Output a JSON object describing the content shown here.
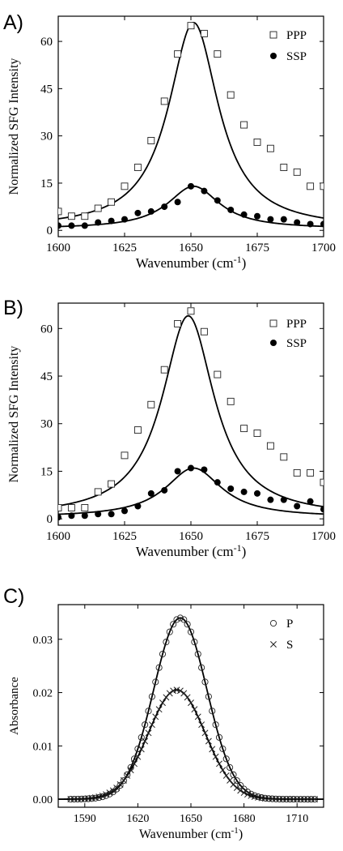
{
  "chart_data": [
    {
      "panel_label": "A)",
      "type": "scatter",
      "xlabel": "Wavenumber (cm",
      "xlabel_sup": "-1",
      "xlabel_tail": ")",
      "ylabel": "Normalized SFG Intensity",
      "xlim": [
        1600,
        1700
      ],
      "ylim": [
        -2,
        68
      ],
      "xticks": [
        1600,
        1625,
        1650,
        1675,
        1700
      ],
      "yticks": [
        0,
        15,
        30,
        45,
        60
      ],
      "legend_position": "top-right",
      "series": [
        {
          "name": "PPP",
          "marker": "open-square",
          "x": [
            1600,
            1605,
            1610,
            1615,
            1620,
            1625,
            1630,
            1635,
            1640,
            1645,
            1650,
            1655,
            1660,
            1665,
            1670,
            1675,
            1680,
            1685,
            1690,
            1695,
            1700
          ],
          "y": [
            6,
            4.5,
            4.5,
            7,
            9,
            14,
            20,
            28.5,
            41,
            56,
            65,
            62.5,
            56,
            43,
            33.5,
            28,
            26,
            20,
            18.5,
            14,
            14
          ],
          "fit": {
            "peak": 65.5,
            "center": 1651,
            "gamma": 11.5,
            "base": 0.5
          }
        },
        {
          "name": "SSP",
          "marker": "filled-circle",
          "x": [
            1600,
            1605,
            1610,
            1615,
            1620,
            1625,
            1630,
            1635,
            1640,
            1645,
            1650,
            1655,
            1660,
            1665,
            1670,
            1675,
            1680,
            1685,
            1690,
            1695,
            1700
          ],
          "y": [
            1.5,
            1.5,
            1.5,
            2.5,
            3,
            3.5,
            5.5,
            6,
            7.5,
            9,
            14,
            12.5,
            9.5,
            6.5,
            5,
            4.5,
            3.5,
            3.5,
            2.5,
            2,
            2
          ],
          "fit": {
            "peak": 13.5,
            "center": 1651,
            "gamma": 12,
            "base": 0.5
          }
        }
      ]
    },
    {
      "panel_label": "B)",
      "type": "scatter",
      "xlabel": "Wavenumber (cm",
      "xlabel_sup": "-1",
      "xlabel_tail": ")",
      "ylabel": "Normalized SFG Intensity",
      "xlim": [
        1600,
        1700
      ],
      "ylim": [
        -2,
        68
      ],
      "xticks": [
        1600,
        1625,
        1650,
        1675,
        1700
      ],
      "yticks": [
        0,
        15,
        30,
        45,
        60
      ],
      "legend_position": "top-right",
      "series": [
        {
          "name": "PPP",
          "marker": "open-square",
          "x": [
            1600,
            1605,
            1610,
            1615,
            1620,
            1625,
            1630,
            1635,
            1640,
            1645,
            1650,
            1655,
            1660,
            1665,
            1670,
            1675,
            1680,
            1685,
            1690,
            1695,
            1700
          ],
          "y": [
            3.5,
            3.5,
            3.5,
            8.5,
            11,
            20,
            28,
            36,
            47,
            61.5,
            65.5,
            59,
            45.5,
            37,
            28.5,
            27,
            23,
            19.5,
            14.5,
            14.5,
            11.5
          ],
          "fit": {
            "peak": 63.5,
            "center": 1649,
            "gamma": 12,
            "base": 0.5
          }
        },
        {
          "name": "SSP",
          "marker": "filled-circle",
          "x": [
            1600,
            1605,
            1610,
            1615,
            1620,
            1625,
            1630,
            1635,
            1640,
            1645,
            1650,
            1655,
            1660,
            1665,
            1670,
            1675,
            1680,
            1685,
            1690,
            1695,
            1700
          ],
          "y": [
            0.5,
            1,
            1,
            1.5,
            1.5,
            2.5,
            4,
            8,
            9,
            15,
            16,
            15.5,
            11.5,
            9.5,
            8.5,
            8,
            6,
            6,
            4,
            5.5,
            3
          ],
          "fit": {
            "peak": 15.5,
            "center": 1651,
            "gamma": 13,
            "base": 0.5
          }
        }
      ]
    },
    {
      "panel_label": "C)",
      "type": "scatter",
      "xlabel": "Wavenumber (cm",
      "xlabel_sup": "-1",
      "xlabel_tail": ")",
      "ylabel": "Absorbance",
      "xlim": [
        1575,
        1725
      ],
      "ylim": [
        -0.0015,
        0.0365
      ],
      "xticks": [
        1590,
        1620,
        1650,
        1680,
        1710
      ],
      "yticks": [
        0.0,
        0.01,
        0.02,
        0.03
      ],
      "ytick_labels": [
        "0.00",
        "0.01",
        "0.02",
        "0.03"
      ],
      "legend_position": "top-right",
      "series": [
        {
          "name": "P",
          "marker": "open-circle",
          "gauss": {
            "peak": 0.034,
            "center": 1644,
            "sigma": 15
          },
          "x_range": [
            1582,
            1720
          ],
          "step": 2
        },
        {
          "name": "S",
          "marker": "cross",
          "gauss": {
            "peak": 0.0205,
            "center": 1642,
            "sigma": 16
          },
          "x_range": [
            1582,
            1720
          ],
          "step": 2
        }
      ]
    }
  ]
}
